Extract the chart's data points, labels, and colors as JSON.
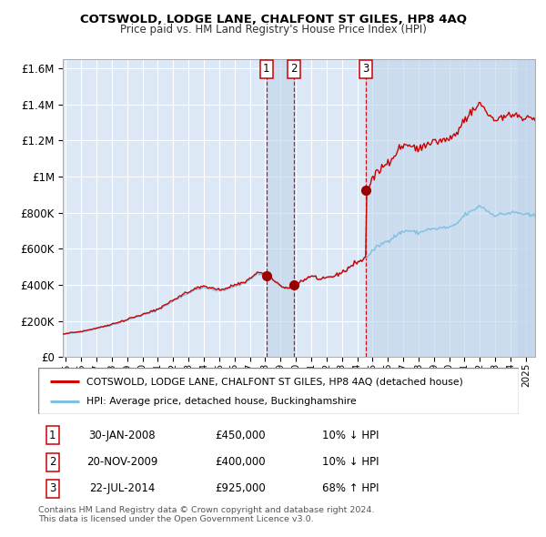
{
  "title": "COTSWOLD, LODGE LANE, CHALFONT ST GILES, HP8 4AQ",
  "subtitle": "Price paid vs. HM Land Registry's House Price Index (HPI)",
  "legend_line1": "COTSWOLD, LODGE LANE, CHALFONT ST GILES, HP8 4AQ (detached house)",
  "legend_line2": "HPI: Average price, detached house, Buckinghamshire",
  "transactions": [
    {
      "num": 1,
      "date": "30-JAN-2008",
      "price": 450000,
      "year": 2008.08,
      "hpi_pct": "10%",
      "hpi_dir": "↓"
    },
    {
      "num": 2,
      "date": "20-NOV-2009",
      "price": 400000,
      "year": 2009.89,
      "hpi_pct": "10%",
      "hpi_dir": "↓"
    },
    {
      "num": 3,
      "date": "22-JUL-2014",
      "price": 925000,
      "year": 2014.55,
      "hpi_pct": "68%",
      "hpi_dir": "↑"
    }
  ],
  "footnote1": "Contains HM Land Registry data © Crown copyright and database right 2024.",
  "footnote2": "This data is licensed under the Open Government Licence v3.0.",
  "hpi_color": "#7fbfdf",
  "price_color": "#cc0000",
  "dot_color": "#990000",
  "vline_color": "#cc0000",
  "plot_bg": "#dce8f5",
  "grid_color": "#ffffff",
  "shade_color": "#c0d4ec",
  "ylim": [
    0,
    1650000
  ],
  "xlim_start": 1994.8,
  "xlim_end": 2025.6
}
